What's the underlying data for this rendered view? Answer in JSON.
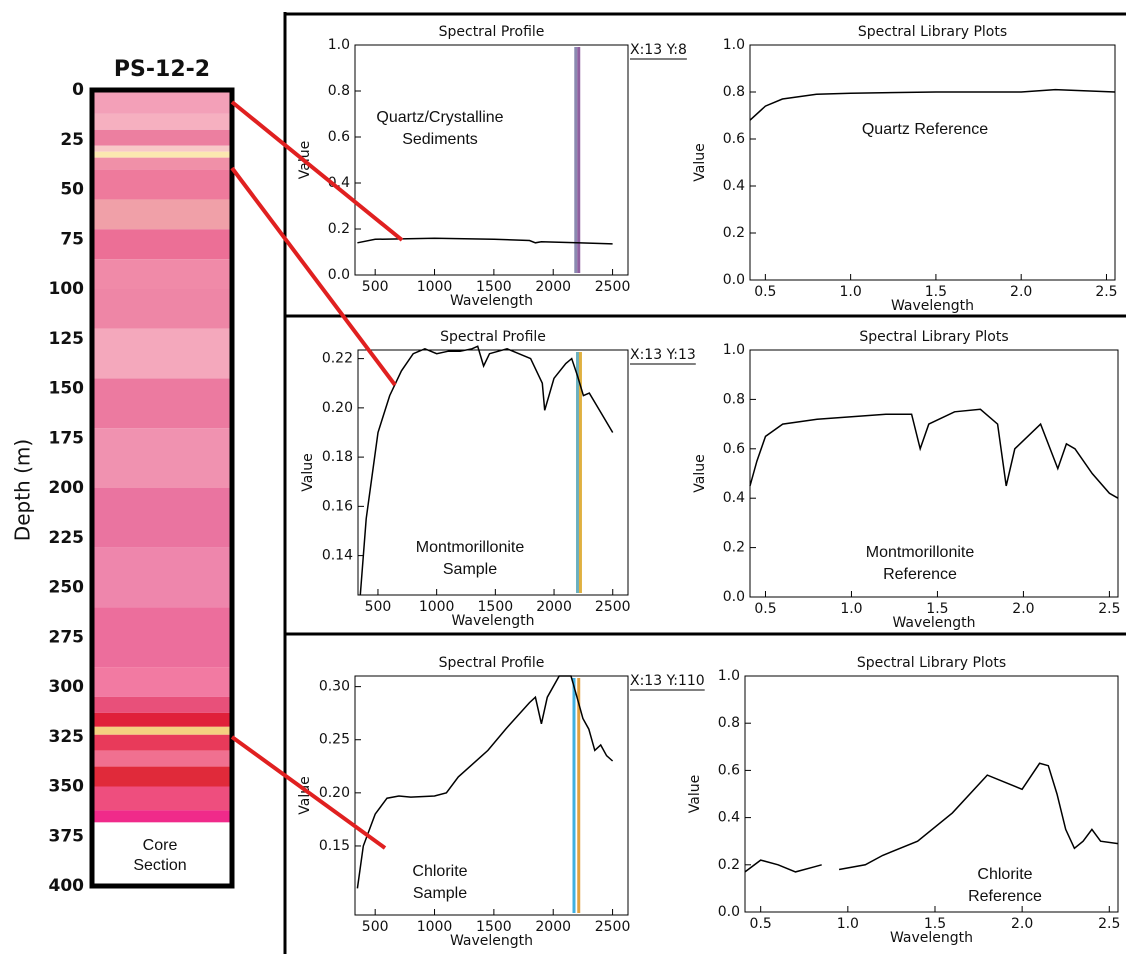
{
  "chart_data": [
    {
      "type": "core",
      "title": "PS-12-2",
      "ylabel": "Depth (m)",
      "ylim": [
        0,
        400
      ],
      "yticks": [
        0,
        25,
        50,
        75,
        100,
        125,
        150,
        175,
        200,
        225,
        250,
        275,
        300,
        325,
        350,
        375,
        400
      ],
      "annotation": [
        "Core",
        "Section"
      ],
      "layers": [
        {
          "top": 0,
          "bottom": 12,
          "color": "#f3a0b8"
        },
        {
          "top": 12,
          "bottom": 20,
          "color": "#f6b0c0"
        },
        {
          "top": 20,
          "bottom": 28,
          "color": "#ec7fa0"
        },
        {
          "top": 28,
          "bottom": 31,
          "color": "#f8c8c8"
        },
        {
          "top": 31,
          "bottom": 34,
          "color": "#fbe8b0"
        },
        {
          "top": 34,
          "bottom": 40,
          "color": "#f090a8"
        },
        {
          "top": 40,
          "bottom": 55,
          "color": "#ee7a9c"
        },
        {
          "top": 55,
          "bottom": 70,
          "color": "#f0a0a8"
        },
        {
          "top": 70,
          "bottom": 85,
          "color": "#ec6f96"
        },
        {
          "top": 85,
          "bottom": 100,
          "color": "#f08aa8"
        },
        {
          "top": 100,
          "bottom": 120,
          "color": "#ee86a6"
        },
        {
          "top": 120,
          "bottom": 145,
          "color": "#f4a8bc"
        },
        {
          "top": 145,
          "bottom": 170,
          "color": "#ec7aa0"
        },
        {
          "top": 170,
          "bottom": 200,
          "color": "#f092b0"
        },
        {
          "top": 200,
          "bottom": 230,
          "color": "#ea74a0"
        },
        {
          "top": 230,
          "bottom": 260,
          "color": "#ee86ac"
        },
        {
          "top": 260,
          "bottom": 290,
          "color": "#ec6e9c"
        },
        {
          "top": 290,
          "bottom": 305,
          "color": "#f27aa2"
        },
        {
          "top": 305,
          "bottom": 313,
          "color": "#e8507a"
        },
        {
          "top": 313,
          "bottom": 320,
          "color": "#e0203a"
        },
        {
          "top": 320,
          "bottom": 324,
          "color": "#f4d080"
        },
        {
          "top": 324,
          "bottom": 332,
          "color": "#e83a5a"
        },
        {
          "top": 332,
          "bottom": 340,
          "color": "#f07090"
        },
        {
          "top": 340,
          "bottom": 350,
          "color": "#e02a3a"
        },
        {
          "top": 350,
          "bottom": 362,
          "color": "#ee4e7e"
        },
        {
          "top": 362,
          "bottom": 368,
          "color": "#f02a8a"
        }
      ]
    },
    {
      "type": "line",
      "title": "Spectral Profile",
      "xlabel": "Wavelength",
      "ylabel": "Value",
      "coords": "X:13 Y:8",
      "annotation": [
        "Quartz/Crystalline",
        "Sediments"
      ],
      "color": "#000000",
      "xlim": [
        330,
        2630
      ],
      "xticks": [
        500,
        1000,
        1500,
        2000,
        2500
      ],
      "ylim": [
        0,
        1.0
      ],
      "yticks": [
        {
          "value": 0,
          "label": "0.0"
        },
        0.2,
        0.4,
        0.6,
        0.8,
        {
          "value": 1,
          "label": "1.0"
        }
      ],
      "markers": [
        {
          "x": 2190,
          "color": "#8a8ab0"
        },
        {
          "x": 2215,
          "color": "#9060a0"
        }
      ],
      "x": [
        350,
        500,
        1000,
        1500,
        1800,
        1850,
        1900,
        2200,
        2500
      ],
      "values": [
        0.14,
        0.155,
        0.16,
        0.155,
        0.15,
        0.14,
        0.145,
        0.14,
        0.135
      ]
    },
    {
      "type": "line",
      "title": "Spectral Library Plots",
      "xlabel": "Wavelength",
      "ylabel": "Value",
      "annotation": [
        "Quartz Reference"
      ],
      "color": "#000000",
      "xlim": [
        0.41,
        2.55
      ],
      "xticks": [
        0.5,
        {
          "value": 1,
          "label": "1.0"
        },
        1.5,
        {
          "value": 2,
          "label": "2.0"
        },
        2.5
      ],
      "ylim": [
        0,
        1.0
      ],
      "yticks": [
        {
          "value": 0,
          "label": "0.0"
        },
        0.2,
        0.4,
        0.6,
        0.8,
        {
          "value": 1,
          "label": "1.0"
        }
      ],
      "x": [
        0.41,
        0.5,
        0.6,
        0.8,
        1.0,
        1.5,
        2.0,
        2.2,
        2.55
      ],
      "values": [
        0.68,
        0.74,
        0.77,
        0.79,
        0.795,
        0.8,
        0.8,
        0.81,
        0.8
      ]
    },
    {
      "type": "line",
      "title": "Spectral Profile",
      "xlabel": "Wavelength",
      "ylabel": "Value",
      "coords": "X:13 Y:13",
      "annotation": [
        "Montmorillonite",
        "Sample"
      ],
      "color": "#000000",
      "xlim": [
        330,
        2630
      ],
      "xticks": [
        500,
        1000,
        1500,
        2000,
        2500
      ],
      "ylim": [
        0.124,
        0.2235
      ],
      "yticks": [
        0.14,
        0.16,
        0.18,
        {
          "value": 0.2,
          "label": "0.20"
        },
        0.22
      ],
      "markers": [
        {
          "x": 2200,
          "color": "#6ab0c0"
        },
        {
          "x": 2225,
          "color": "#e0b040"
        }
      ],
      "x": [
        350,
        400,
        500,
        600,
        700,
        800,
        900,
        1000,
        1100,
        1200,
        1300,
        1350,
        1400,
        1450,
        1600,
        1800,
        1900,
        1920,
        2000,
        2100,
        2150,
        2200,
        2250,
        2300,
        2400,
        2500
      ],
      "values": [
        0.124,
        0.155,
        0.19,
        0.205,
        0.215,
        0.222,
        0.224,
        0.222,
        0.223,
        0.223,
        0.224,
        0.225,
        0.217,
        0.222,
        0.224,
        0.22,
        0.21,
        0.199,
        0.212,
        0.218,
        0.22,
        0.213,
        0.205,
        0.206,
        0.198,
        0.19
      ]
    },
    {
      "type": "line",
      "title": "Spectral Library Plots",
      "xlabel": "Wavelength",
      "ylabel": "Value",
      "annotation": [
        "Montmorillonite",
        "Reference"
      ],
      "color": "#000000",
      "xlim": [
        0.41,
        2.55
      ],
      "xticks": [
        0.5,
        {
          "value": 1,
          "label": "1.0"
        },
        1.5,
        {
          "value": 2,
          "label": "2.0"
        },
        2.5
      ],
      "ylim": [
        0,
        1.0
      ],
      "yticks": [
        {
          "value": 0,
          "label": "0.0"
        },
        0.2,
        0.4,
        0.6,
        0.8,
        {
          "value": 1,
          "label": "1.0"
        }
      ],
      "x": [
        0.41,
        0.45,
        0.5,
        0.6,
        0.8,
        1.0,
        1.2,
        1.35,
        1.4,
        1.45,
        1.6,
        1.75,
        1.85,
        1.9,
        1.95,
        2.1,
        2.2,
        2.25,
        2.3,
        2.4,
        2.5,
        2.55
      ],
      "values": [
        0.45,
        0.55,
        0.65,
        0.7,
        0.72,
        0.73,
        0.74,
        0.74,
        0.6,
        0.7,
        0.75,
        0.76,
        0.7,
        0.45,
        0.6,
        0.7,
        0.52,
        0.62,
        0.6,
        0.5,
        0.42,
        0.4
      ]
    },
    {
      "type": "line",
      "title": "Spectral Profile",
      "xlabel": "Wavelength",
      "ylabel": "Value",
      "coords": "X:13 Y:110",
      "annotation": [
        "Chlorite",
        "Sample"
      ],
      "color": "#000000",
      "xlim": [
        330,
        2630
      ],
      "xticks": [
        500,
        1000,
        1500,
        2000,
        2500
      ],
      "ylim": [
        0.085,
        0.31
      ],
      "yticks": [
        0.15,
        {
          "value": 0.2,
          "label": "0.20"
        },
        0.25,
        {
          "value": 0.3,
          "label": "0.30"
        }
      ],
      "markers": [
        {
          "x": 2175,
          "color": "#40b0e0"
        },
        {
          "x": 2215,
          "color": "#e0a040"
        }
      ],
      "x": [
        350,
        400,
        500,
        600,
        700,
        800,
        1000,
        1100,
        1200,
        1400,
        1450,
        1600,
        1800,
        1850,
        1900,
        1950,
        2050,
        2150,
        2200,
        2250,
        2300,
        2350,
        2400,
        2450,
        2500
      ],
      "values": [
        0.11,
        0.15,
        0.18,
        0.195,
        0.197,
        0.196,
        0.197,
        0.2,
        0.215,
        0.235,
        0.24,
        0.26,
        0.285,
        0.29,
        0.265,
        0.29,
        0.31,
        0.31,
        0.29,
        0.27,
        0.26,
        0.24,
        0.245,
        0.235,
        0.23
      ]
    },
    {
      "type": "line",
      "title": "Spectral Library Plots",
      "xlabel": "Wavelength",
      "ylabel": "Value",
      "annotation": [
        "Chlorite",
        "Reference"
      ],
      "color": "#000000",
      "xlim": [
        0.41,
        2.55
      ],
      "xticks": [
        0.5,
        {
          "value": 1,
          "label": "1.0"
        },
        1.5,
        {
          "value": 2,
          "label": "2.0"
        },
        2.5
      ],
      "ylim": [
        0,
        1.0
      ],
      "yticks": [
        {
          "value": 0,
          "label": "0.0"
        },
        0.2,
        0.4,
        0.6,
        0.8,
        {
          "value": 1,
          "label": "1.0"
        }
      ],
      "x": [
        0.41,
        0.5,
        0.6,
        0.7,
        0.8,
        0.85,
        0.9,
        0.95,
        1.1,
        1.2,
        1.4,
        1.6,
        1.8,
        1.9,
        2.0,
        2.1,
        2.15,
        2.2,
        2.25,
        2.3,
        2.35,
        2.4,
        2.45,
        2.55
      ],
      "values": [
        0.17,
        0.22,
        0.2,
        0.17,
        0.19,
        0.2,
        null,
        0.18,
        0.2,
        0.24,
        0.3,
        0.42,
        0.58,
        0.55,
        0.52,
        0.63,
        0.62,
        0.5,
        0.35,
        0.27,
        0.3,
        0.35,
        0.3,
        0.29
      ]
    }
  ]
}
